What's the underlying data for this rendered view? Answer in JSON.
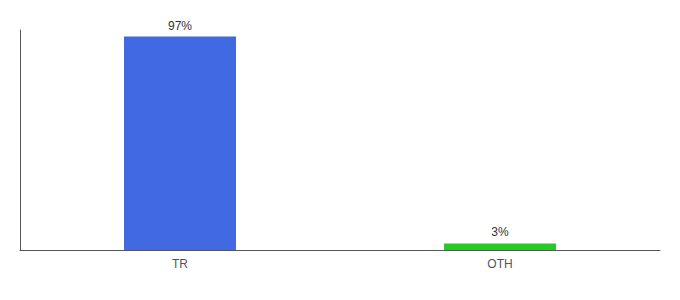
{
  "chart_data": {
    "type": "bar",
    "categories": [
      "TR",
      "OTH"
    ],
    "values": [
      97,
      3
    ],
    "value_labels": [
      "97%",
      "3%"
    ],
    "colors": [
      "#4169e1",
      "#22cc22"
    ],
    "ylim": [
      0,
      100
    ],
    "grid": false,
    "data_labels": true,
    "tick_labels": "x"
  }
}
